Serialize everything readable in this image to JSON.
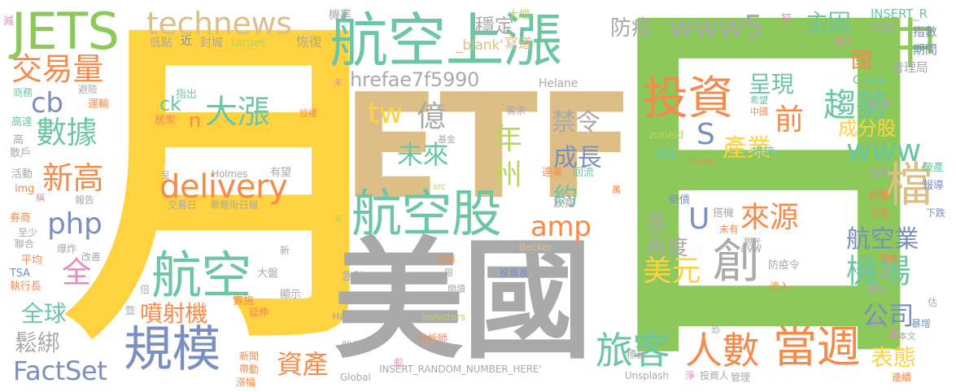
{
  "palette": {
    "yellow": "#FFD23F",
    "green": "#8DC85B",
    "tan": "#DDBE87",
    "grey": "#A9A9A9",
    "teal": "#6CC6A4",
    "orange": "#F58A4B",
    "blue": "#7A8FBF",
    "pink": "#E58AC0",
    "lime": "#B9D65A"
  },
  "words": [
    {
      "text": "月",
      "color": "yellow"
    },
    {
      "text": "日",
      "color": "green"
    },
    {
      "text": "ETF",
      "color": "tan"
    },
    {
      "text": "美國",
      "color": "grey"
    },
    {
      "text": "航空上漲",
      "color": "teal"
    },
    {
      "text": "JETS",
      "color": "green"
    },
    {
      "text": "technews",
      "color": "tan"
    },
    {
      "text": "www5",
      "color": "grey"
    },
    {
      "text": "中",
      "color": "green"
    },
    {
      "text": "檔",
      "color": "tan"
    },
    {
      "text": "航空股",
      "color": "teal"
    },
    {
      "text": "規模",
      "color": "blue"
    },
    {
      "text": "航空",
      "color": "teal"
    },
    {
      "text": "旅客",
      "color": "teal"
    },
    {
      "text": "人數",
      "color": "orange"
    },
    {
      "text": "當週",
      "color": "orange"
    },
    {
      "text": "投資",
      "color": "orange"
    },
    {
      "text": "創",
      "color": "grey"
    },
    {
      "text": "交易量",
      "color": "orange"
    },
    {
      "text": "數據",
      "color": "teal"
    },
    {
      "text": "新高",
      "color": "orange"
    },
    {
      "text": "cb",
      "color": "blue"
    },
    {
      "text": "php",
      "color": "blue"
    },
    {
      "text": "全",
      "color": "pink"
    },
    {
      "text": "delivery",
      "color": "orange"
    },
    {
      "text": "大漲",
      "color": "teal"
    },
    {
      "text": "ck",
      "color": "teal"
    },
    {
      "text": "n",
      "color": "orange"
    },
    {
      "text": "hrefae7f5990",
      "color": "grey"
    },
    {
      "text": "tw",
      "color": "yellow"
    },
    {
      "text": "億",
      "color": "grey"
    },
    {
      "text": "未來",
      "color": "teal"
    },
    {
      "text": "年",
      "color": "lime"
    },
    {
      "text": "州",
      "color": "lime"
    },
    {
      "text": "禁令",
      "color": "grey"
    },
    {
      "text": "成長",
      "color": "blue"
    },
    {
      "text": "約",
      "color": "teal"
    },
    {
      "text": "amp",
      "color": "orange"
    },
    {
      "text": "趨勢",
      "color": "teal"
    },
    {
      "text": "呈現",
      "color": "teal"
    },
    {
      "text": "前",
      "color": "orange"
    },
    {
      "text": "S",
      "color": "blue"
    },
    {
      "text": "產業",
      "color": "yellow"
    },
    {
      "text": "www",
      "color": "teal"
    },
    {
      "text": "成分股",
      "color": "yellow"
    },
    {
      "text": "航空業",
      "color": "blue"
    },
    {
      "text": "機場",
      "color": "teal"
    },
    {
      "text": "公司",
      "color": "blue"
    },
    {
      "text": "來源",
      "color": "orange"
    },
    {
      "text": "U",
      "color": "blue"
    },
    {
      "text": "漲",
      "color": "grey"
    },
    {
      "text": "再度",
      "color": "grey"
    },
    {
      "text": "美元",
      "color": "yellow"
    },
    {
      "text": "資產",
      "color": "orange"
    },
    {
      "text": "表態",
      "color": "yellow"
    },
    {
      "text": "FactSet",
      "color": "blue"
    },
    {
      "text": "鬆綁",
      "color": "grey"
    },
    {
      "text": "全球",
      "color": "teal"
    },
    {
      "text": "噴射機",
      "color": "orange"
    },
    {
      "text": "防疫",
      "color": "grey"
    },
    {
      "text": "主因",
      "color": "teal"
    },
    {
      "text": "國",
      "color": "orange"
    },
    {
      "text": "穩定",
      "color": "grey"
    },
    {
      "text": "大增",
      "color": "lime"
    },
    {
      "text": "寫道",
      "color": "tan"
    },
    {
      "text": "_blank'",
      "color": "tan"
    },
    {
      "text": "INSERT_R",
      "color": "teal"
    },
    {
      "text": "低潮",
      "color": "grey"
    },
    {
      "text": "指數",
      "color": "blue"
    },
    {
      "text": "期間",
      "color": "blue"
    },
    {
      "text": "管理局",
      "color": "grey"
    },
    {
      "text": "恢復",
      "color": "grey"
    },
    {
      "text": "target",
      "color": "lime"
    },
    {
      "text": "封城",
      "color": "grey"
    },
    {
      "text": "低點",
      "color": "grey"
    },
    {
      "text": "近",
      "color": "blue"
    },
    {
      "text": "機率",
      "color": "grey"
    },
    {
      "text": "初",
      "color": "pink"
    },
    {
      "text": "減",
      "color": "pink"
    },
    {
      "text": "Helane",
      "color": "grey"
    },
    {
      "text": "Cowen",
      "color": "teal"
    },
    {
      "text": "優於",
      "color": "grey"
    },
    {
      "text": "希望",
      "color": "teal"
    },
    {
      "text": "中國",
      "color": "orange"
    },
    {
      "text": "zoneid",
      "color": "lime"
    },
    {
      "text": "措施",
      "color": "teal"
    },
    {
      "text": "休閒",
      "color": "teal"
    },
    {
      "text": "Frank",
      "color": "orange"
    },
    {
      "text": "Holmes",
      "color": "grey"
    },
    {
      "text": "有望",
      "color": "grey"
    },
    {
      "text": "達美",
      "color": "orange"
    },
    {
      "text": "回流",
      "color": "teal"
    },
    {
      "text": "交易日",
      "color": "grey"
    },
    {
      "text": "華爾街日報",
      "color": "grey"
    },
    {
      "text": "src",
      "color": "lime"
    },
    {
      "text": "放寬",
      "color": "grey"
    },
    {
      "text": "倒債",
      "color": "blue"
    },
    {
      "text": "搭機",
      "color": "grey"
    },
    {
      "text": "未有",
      "color": "orange"
    },
    {
      "text": "觀光",
      "color": "grey"
    },
    {
      "text": "avw",
      "color": "grey"
    },
    {
      "text": "防疫令",
      "color": "grey"
    },
    {
      "text": "流入",
      "color": "orange"
    },
    {
      "text": "Becker",
      "color": "tan"
    },
    {
      "text": "西南",
      "color": "orange"
    },
    {
      "text": "急劇",
      "color": "grey"
    },
    {
      "text": "投資長",
      "color": "blue"
    },
    {
      "text": "閱讀",
      "color": "grey"
    },
    {
      "text": "MoneyDJ",
      "color": "grey"
    },
    {
      "text": "Investors",
      "color": "lime"
    },
    {
      "text": "分析師",
      "color": "orange"
    },
    {
      "text": "股價",
      "color": "grey"
    },
    {
      "text": "INSERT_RANDOM_NUMBER_HERE'",
      "color": "grey"
    },
    {
      "text": "Global",
      "color": "grey"
    },
    {
      "text": "Unsplash",
      "color": "grey"
    },
    {
      "text": "標普",
      "color": "grey"
    },
    {
      "text": "淨",
      "color": "pink"
    },
    {
      "text": "投資人",
      "color": "grey"
    },
    {
      "text": "管理",
      "color": "grey"
    },
    {
      "text": "本文",
      "color": "grey"
    },
    {
      "text": "暴增",
      "color": "blue"
    },
    {
      "text": "連續",
      "color": "orange"
    },
    {
      "text": "a",
      "color": "pink"
    },
    {
      "text": "商務",
      "color": "teal"
    },
    {
      "text": "避險",
      "color": "grey"
    },
    {
      "text": "運輸",
      "color": "orange"
    },
    {
      "text": "指出",
      "color": "teal"
    },
    {
      "text": "居家",
      "color": "orange"
    },
    {
      "text": "高達",
      "color": "teal"
    },
    {
      "text": "高",
      "color": "grey"
    },
    {
      "text": "散戶",
      "color": "grey"
    },
    {
      "text": "活動",
      "color": "grey"
    },
    {
      "text": "img",
      "color": "orange"
    },
    {
      "text": "報告",
      "color": "grey"
    },
    {
      "text": "券商",
      "color": "orange"
    },
    {
      "text": "至少",
      "color": "grey"
    },
    {
      "text": "聯合",
      "color": "grey"
    },
    {
      "text": "爆炸",
      "color": "grey"
    },
    {
      "text": "改善",
      "color": "grey"
    },
    {
      "text": "平均",
      "color": "orange"
    },
    {
      "text": "TSA",
      "color": "blue"
    },
    {
      "text": "執行長",
      "color": "orange"
    },
    {
      "text": "大盤",
      "color": "grey"
    },
    {
      "text": "顯示",
      "color": "grey"
    },
    {
      "text": "實施",
      "color": "orange"
    },
    {
      "text": "延伸",
      "color": "orange"
    },
    {
      "text": "帶動",
      "color": "orange"
    },
    {
      "text": "新聞",
      "color": "orange"
    },
    {
      "text": "漲幅",
      "color": "orange"
    },
    {
      "text": "延長",
      "color": "grey"
    },
    {
      "text": "破產",
      "color": "teal"
    },
    {
      "text": "報導",
      "color": "blue"
    },
    {
      "text": "首園",
      "color": "orange"
    },
    {
      "text": "分散",
      "color": "orange"
    },
    {
      "text": "下跌",
      "color": "blue"
    },
    {
      "text": "開放",
      "color": "orange"
    },
    {
      "text": "美",
      "color": "pink"
    },
    {
      "text": "轉載",
      "color": "grey"
    },
    {
      "text": "需求",
      "color": "grey"
    },
    {
      "text": "基金",
      "color": "grey"
    },
    {
      "text": "授權",
      "color": "orange"
    },
    {
      "text": "限",
      "color": "grey"
    },
    {
      "text": "呈",
      "color": "grey"
    },
    {
      "text": "稱",
      "color": "pink"
    },
    {
      "text": "新",
      "color": "grey"
    },
    {
      "text": "倍",
      "color": "grey"
    },
    {
      "text": "暨",
      "color": "grey"
    },
    {
      "text": "天",
      "color": "lime"
    },
    {
      "text": "萬",
      "color": "orange"
    },
    {
      "text": "說",
      "color": "grey"
    },
    {
      "text": "飛令",
      "color": "pink"
    },
    {
      "text": "估",
      "color": "grey"
    },
    {
      "text": "恐",
      "color": "grey"
    },
    {
      "text": "未",
      "color": "pink"
    },
    {
      "text": "彪",
      "color": "pink"
    }
  ]
}
